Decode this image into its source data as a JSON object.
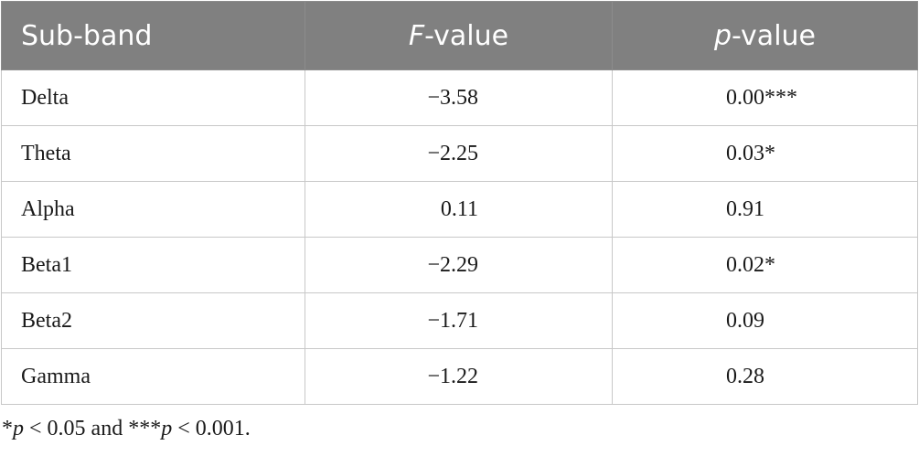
{
  "table": {
    "headers": {
      "col1": "Sub-band",
      "col2_italic": "F",
      "col2_rest": "-value",
      "col3_italic": "p",
      "col3_rest": "-value"
    },
    "rows": [
      {
        "band": "Delta",
        "f_value": "−3.58",
        "p_value": "0.00***"
      },
      {
        "band": "Theta",
        "f_value": "−2.25",
        "p_value": "0.03*"
      },
      {
        "band": "Alpha",
        "f_value": "0.11",
        "p_value": "0.91"
      },
      {
        "band": "Beta1",
        "f_value": "−2.29",
        "p_value": "0.02*"
      },
      {
        "band": "Beta2",
        "f_value": "−1.71",
        "p_value": "0.09"
      },
      {
        "band": "Gamma",
        "f_value": "−1.22",
        "p_value": "0.28"
      }
    ]
  },
  "footnote": {
    "part1": "*",
    "p1": "p",
    "part2": " < 0.05 and ***",
    "p2": "p",
    "part3": " < 0.001."
  }
}
